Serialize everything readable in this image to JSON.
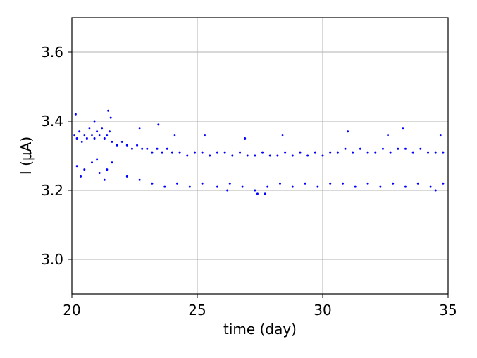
{
  "chart_data": {
    "type": "scatter",
    "xlabel": "time (day)",
    "ylabel": "I (μA)",
    "xlim": [
      20,
      35
    ],
    "ylim": [
      2.9,
      3.7
    ],
    "xticks": [
      20,
      25,
      30,
      35
    ],
    "xtick_labels": [
      "20",
      "25",
      "30",
      "35"
    ],
    "yticks": [
      3.0,
      3.2,
      3.4,
      3.6
    ],
    "ytick_labels": [
      "3.0",
      "3.2",
      "3.4",
      "3.6"
    ],
    "grid": true,
    "marker_color": "#0000ff",
    "series": [
      {
        "points": [
          [
            20.1,
            3.36
          ],
          [
            20.2,
            3.35
          ],
          [
            20.3,
            3.37
          ],
          [
            20.4,
            3.34
          ],
          [
            20.5,
            3.36
          ],
          [
            20.6,
            3.35
          ],
          [
            20.7,
            3.38
          ],
          [
            20.8,
            3.36
          ],
          [
            20.9,
            3.35
          ],
          [
            21.0,
            3.37
          ],
          [
            21.1,
            3.36
          ],
          [
            21.2,
            3.38
          ],
          [
            21.3,
            3.35
          ],
          [
            21.4,
            3.36
          ],
          [
            21.5,
            3.37
          ],
          [
            21.6,
            3.34
          ],
          [
            21.8,
            3.33
          ],
          [
            22.0,
            3.34
          ],
          [
            22.2,
            3.33
          ],
          [
            22.4,
            3.32
          ],
          [
            22.6,
            3.33
          ],
          [
            22.8,
            3.32
          ],
          [
            23.0,
            3.32
          ],
          [
            23.2,
            3.31
          ],
          [
            23.4,
            3.32
          ],
          [
            23.6,
            3.31
          ],
          [
            23.8,
            3.32
          ],
          [
            24.0,
            3.31
          ],
          [
            24.3,
            3.31
          ],
          [
            24.6,
            3.3
          ],
          [
            24.9,
            3.31
          ],
          [
            25.2,
            3.31
          ],
          [
            25.5,
            3.3
          ],
          [
            25.8,
            3.31
          ],
          [
            26.1,
            3.31
          ],
          [
            26.4,
            3.3
          ],
          [
            26.7,
            3.31
          ],
          [
            27.0,
            3.3
          ],
          [
            27.3,
            3.3
          ],
          [
            27.6,
            3.31
          ],
          [
            27.9,
            3.3
          ],
          [
            28.2,
            3.3
          ],
          [
            28.5,
            3.31
          ],
          [
            28.8,
            3.3
          ],
          [
            29.1,
            3.31
          ],
          [
            29.4,
            3.3
          ],
          [
            29.7,
            3.31
          ],
          [
            30.0,
            3.3
          ],
          [
            30.3,
            3.31
          ],
          [
            30.6,
            3.31
          ],
          [
            30.9,
            3.32
          ],
          [
            31.2,
            3.31
          ],
          [
            31.5,
            3.32
          ],
          [
            31.8,
            3.31
          ],
          [
            32.1,
            3.31
          ],
          [
            32.4,
            3.32
          ],
          [
            32.7,
            3.31
          ],
          [
            33.0,
            3.32
          ],
          [
            33.3,
            3.32
          ],
          [
            33.6,
            3.31
          ],
          [
            33.9,
            3.32
          ],
          [
            34.2,
            3.31
          ],
          [
            34.5,
            3.31
          ],
          [
            34.8,
            3.31
          ],
          [
            20.15,
            3.42
          ],
          [
            20.9,
            3.4
          ],
          [
            21.45,
            3.43
          ],
          [
            21.55,
            3.41
          ],
          [
            22.7,
            3.38
          ],
          [
            23.45,
            3.39
          ],
          [
            24.1,
            3.36
          ],
          [
            25.3,
            3.36
          ],
          [
            26.9,
            3.35
          ],
          [
            28.4,
            3.36
          ],
          [
            31.0,
            3.37
          ],
          [
            32.6,
            3.36
          ],
          [
            33.2,
            3.38
          ],
          [
            34.7,
            3.36
          ],
          [
            20.2,
            3.27
          ],
          [
            20.5,
            3.26
          ],
          [
            20.8,
            3.28
          ],
          [
            21.1,
            3.25
          ],
          [
            21.4,
            3.26
          ],
          [
            21.6,
            3.28
          ],
          [
            20.35,
            3.24
          ],
          [
            21.0,
            3.29
          ],
          [
            21.3,
            3.23
          ],
          [
            22.2,
            3.24
          ],
          [
            22.7,
            3.23
          ],
          [
            23.2,
            3.22
          ],
          [
            23.7,
            3.21
          ],
          [
            24.2,
            3.22
          ],
          [
            24.7,
            3.21
          ],
          [
            25.2,
            3.22
          ],
          [
            25.8,
            3.21
          ],
          [
            26.3,
            3.22
          ],
          [
            26.8,
            3.21
          ],
          [
            27.3,
            3.2
          ],
          [
            27.8,
            3.21
          ],
          [
            28.3,
            3.22
          ],
          [
            28.8,
            3.21
          ],
          [
            29.3,
            3.22
          ],
          [
            29.8,
            3.21
          ],
          [
            30.3,
            3.22
          ],
          [
            30.8,
            3.22
          ],
          [
            31.3,
            3.21
          ],
          [
            31.8,
            3.22
          ],
          [
            32.3,
            3.21
          ],
          [
            32.8,
            3.22
          ],
          [
            33.3,
            3.21
          ],
          [
            33.8,
            3.22
          ],
          [
            34.3,
            3.21
          ],
          [
            34.8,
            3.22
          ],
          [
            27.4,
            3.19
          ],
          [
            27.7,
            3.19
          ],
          [
            26.2,
            3.2
          ],
          [
            34.5,
            3.2
          ]
        ]
      }
    ]
  }
}
